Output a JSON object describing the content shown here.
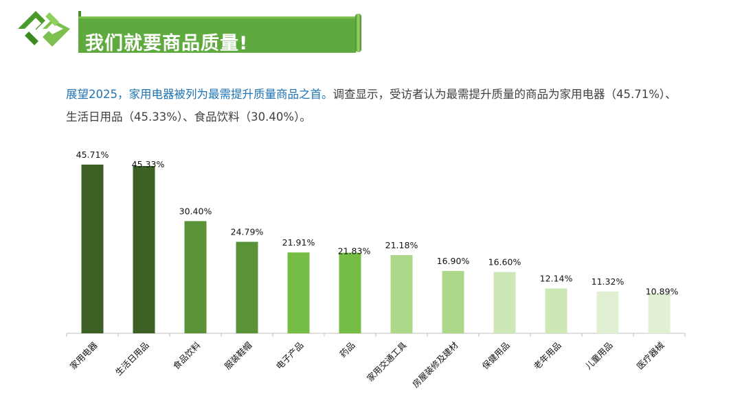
{
  "banner": {
    "title": "我们就要商品质量!"
  },
  "description": {
    "highlight": "展望2025，家用电器被列为最需提升质量商品之首。",
    "body": "调查显示，受访者认为最需提升质量的商品为家用电器（45.71%）、生活日用品（45.33%）、食品饮料（30.40%）。"
  },
  "colors": {
    "dark_green": "#3d6125",
    "mid_green": "#5a9238",
    "bright_green": "#76bd45",
    "light_green": "#add88a",
    "pale_green": "#cde7b6",
    "paler_green": "#e1f0d3",
    "accent_blue": "#1e73b4"
  },
  "chart_data": {
    "type": "bar",
    "title": "",
    "xlabel": "",
    "ylabel": "",
    "ylim": [
      0,
      50
    ],
    "categories": [
      "家用电器",
      "生活日用品",
      "食品饮料",
      "服装鞋帽",
      "电子产品",
      "药品",
      "家用交通工具",
      "房屋装修及建材",
      "保健用品",
      "老年用品",
      "儿童用品",
      "医疗器械"
    ],
    "values": [
      45.71,
      45.33,
      30.4,
      24.79,
      21.91,
      21.83,
      21.18,
      16.9,
      16.6,
      12.14,
      11.32,
      10.89
    ],
    "data_labels": [
      "45.71%",
      "45.33%",
      "30.40%",
      "24.79%",
      "21.91%",
      "21.83%",
      "21.18%",
      "16.90%",
      "16.60%",
      "12.14%",
      "11.32%",
      "10.89%"
    ],
    "bar_colors": [
      "#3d6125",
      "#3d6125",
      "#5a9238",
      "#5a9238",
      "#76bd45",
      "#76bd45",
      "#add88a",
      "#add88a",
      "#cde7b6",
      "#cde7b6",
      "#e1f0d3",
      "#e1f0d3"
    ],
    "grid": false,
    "legend": "none"
  }
}
